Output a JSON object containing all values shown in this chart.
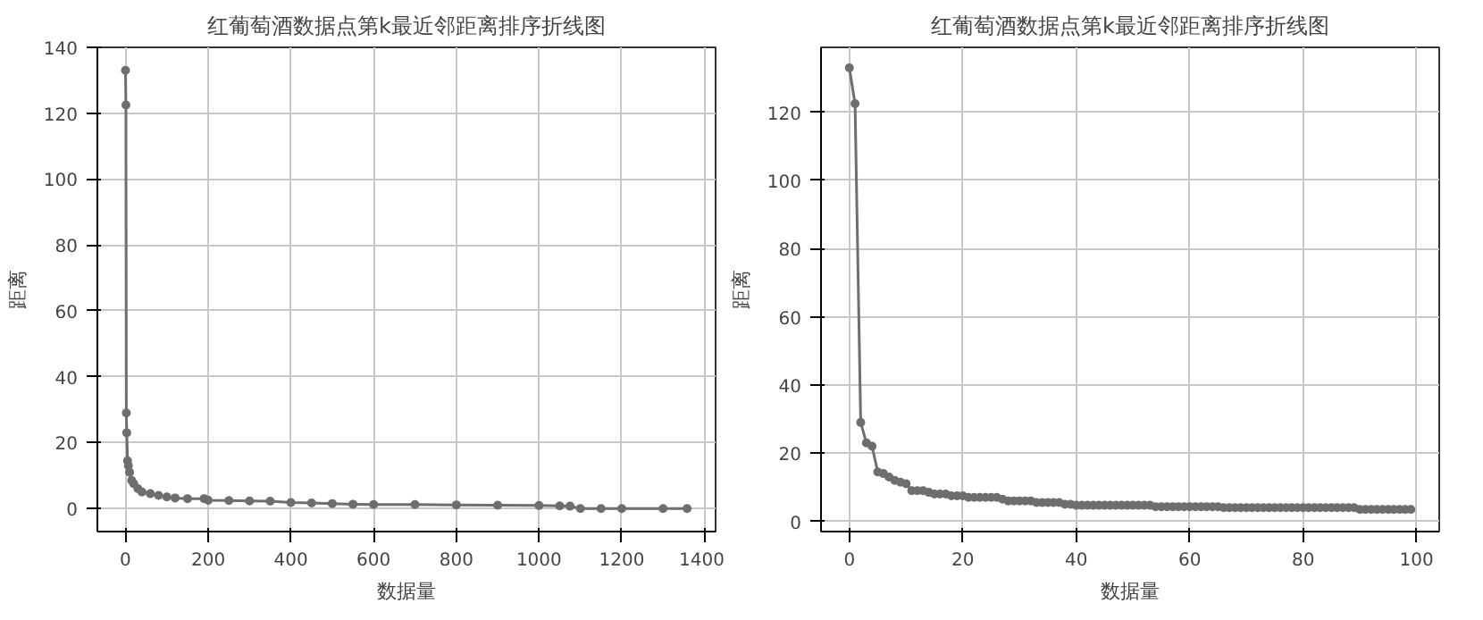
{
  "chart_data": [
    {
      "type": "line",
      "title": "红葡萄酒数据点第k最近邻距离排序折线图",
      "xlabel": "数据量",
      "ylabel": "距离",
      "xlim": [
        -68,
        1427
      ],
      "ylim": [
        -7,
        140
      ],
      "xticks": [
        0,
        200,
        400,
        600,
        800,
        1000,
        1200,
        1400
      ],
      "yticks": [
        0,
        20,
        40,
        60,
        80,
        100,
        120,
        140
      ],
      "grid": true,
      "marker": "circle",
      "line_style": "solid",
      "series": [
        {
          "color": "#6e6e6e",
          "x": [
            0,
            1,
            2,
            3,
            5,
            7,
            10,
            15,
            20,
            30,
            40,
            60,
            80,
            100,
            120,
            150,
            190,
            200,
            250,
            300,
            350,
            400,
            450,
            500,
            550,
            600,
            700,
            800,
            900,
            1000,
            1050,
            1075,
            1100,
            1150,
            1200,
            1300,
            1358
          ],
          "values": [
            133,
            122.5,
            29,
            23,
            14.5,
            13,
            11,
            8.5,
            7.5,
            6,
            5,
            4.5,
            4,
            3.5,
            3.2,
            3,
            3,
            2.5,
            2.4,
            2.3,
            2.2,
            1.8,
            1.7,
            1.5,
            1.3,
            1.2,
            1.2,
            1.1,
            1.0,
            0.9,
            0.8,
            0.7,
            0,
            0,
            0,
            0,
            0
          ]
        }
      ]
    },
    {
      "type": "line",
      "title": "红葡萄酒数据点第k最近邻距离排序折线图",
      "xlabel": "数据量",
      "ylabel": "距离",
      "xlim": [
        -5,
        104
      ],
      "ylim": [
        -3,
        139
      ],
      "xticks": [
        0,
        20,
        40,
        60,
        80,
        100
      ],
      "yticks": [
        0,
        20,
        40,
        60,
        80,
        100,
        120
      ],
      "grid": true,
      "marker": "circle",
      "line_style": "solid",
      "series": [
        {
          "color": "#6e6e6e",
          "x": [
            0,
            1,
            2,
            3,
            4,
            5,
            6,
            7,
            8,
            9,
            10,
            11,
            12,
            13,
            14,
            15,
            16,
            17,
            18,
            19,
            20,
            21,
            22,
            23,
            24,
            25,
            26,
            27,
            28,
            29,
            30,
            31,
            32,
            33,
            34,
            35,
            36,
            37,
            38,
            39,
            40,
            41,
            42,
            43,
            44,
            45,
            46,
            47,
            48,
            49,
            50,
            51,
            52,
            53,
            54,
            55,
            56,
            57,
            58,
            59,
            60,
            61,
            62,
            63,
            64,
            65,
            66,
            67,
            68,
            69,
            70,
            71,
            72,
            73,
            74,
            75,
            76,
            77,
            78,
            79,
            80,
            81,
            82,
            83,
            84,
            85,
            86,
            87,
            88,
            89,
            90,
            91,
            92,
            93,
            94,
            95,
            96,
            97,
            98,
            99
          ],
          "values": [
            133,
            122.5,
            29,
            23,
            22,
            14.5,
            14,
            13,
            12,
            11.5,
            11,
            9,
            9,
            9,
            8.5,
            8,
            8,
            8,
            7.5,
            7.5,
            7.5,
            7,
            7,
            7,
            7,
            7,
            7,
            6.5,
            6,
            6,
            6,
            6,
            6,
            5.5,
            5.5,
            5.5,
            5.5,
            5.5,
            5,
            5,
            4.7,
            4.7,
            4.7,
            4.7,
            4.7,
            4.7,
            4.7,
            4.7,
            4.7,
            4.7,
            4.7,
            4.7,
            4.7,
            4.7,
            4.3,
            4.3,
            4.3,
            4.3,
            4.3,
            4.3,
            4.3,
            4.3,
            4.3,
            4.3,
            4.3,
            4.3,
            4,
            4,
            4,
            4,
            4,
            4,
            4,
            4,
            4,
            4,
            4,
            4,
            4,
            4,
            4,
            4,
            4,
            4,
            4,
            4,
            4,
            4,
            4,
            4,
            3.5,
            3.5,
            3.5,
            3.5,
            3.5,
            3.5,
            3.5,
            3.5,
            3.5,
            3.5
          ]
        }
      ]
    }
  ]
}
